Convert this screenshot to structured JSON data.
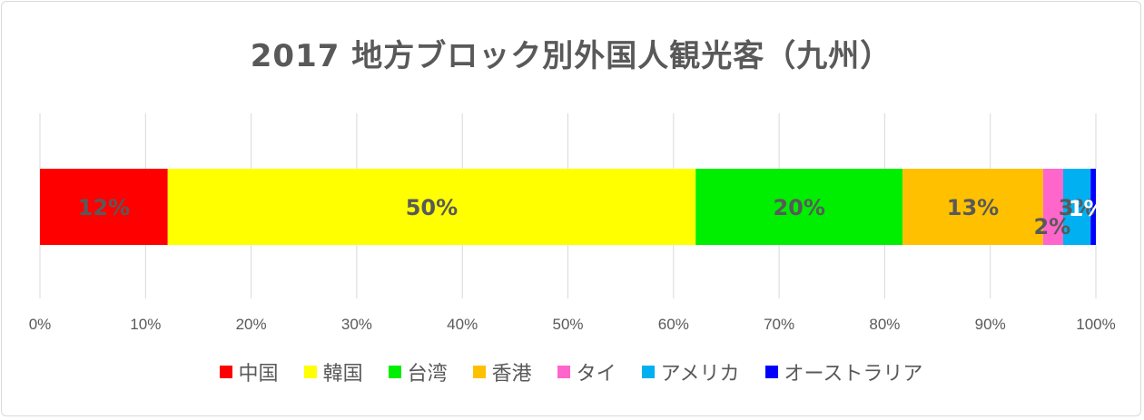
{
  "chart_data": {
    "type": "bar",
    "orientation": "horizontal",
    "stacked": "percent",
    "title": "2017 地方ブロック別外国人観光客（九州）",
    "xlim": [
      0,
      100
    ],
    "xticks": [
      "0%",
      "10%",
      "20%",
      "30%",
      "40%",
      "50%",
      "60%",
      "70%",
      "80%",
      "90%",
      "100%"
    ],
    "grid": true,
    "legend_position": "bottom",
    "series": [
      {
        "name": "中国",
        "value": 12.1,
        "label": "12%",
        "color": "#ff0000"
      },
      {
        "name": "韓国",
        "value": 50.0,
        "label": "50%",
        "color": "#ffff00"
      },
      {
        "name": "台湾",
        "value": 19.6,
        "label": "20%",
        "color": "#00ee00"
      },
      {
        "name": "香港",
        "value": 13.3,
        "label": "13%",
        "color": "#ffc000"
      },
      {
        "name": "タイ",
        "value": 1.9,
        "label": "2%",
        "color": "#ff66cc"
      },
      {
        "name": "アメリカ",
        "value": 2.6,
        "label": "3%",
        "color": "#00b0f0"
      },
      {
        "name": "オーストラリア",
        "value": 0.5,
        "label": "1%",
        "color": "#0000ff"
      }
    ]
  }
}
